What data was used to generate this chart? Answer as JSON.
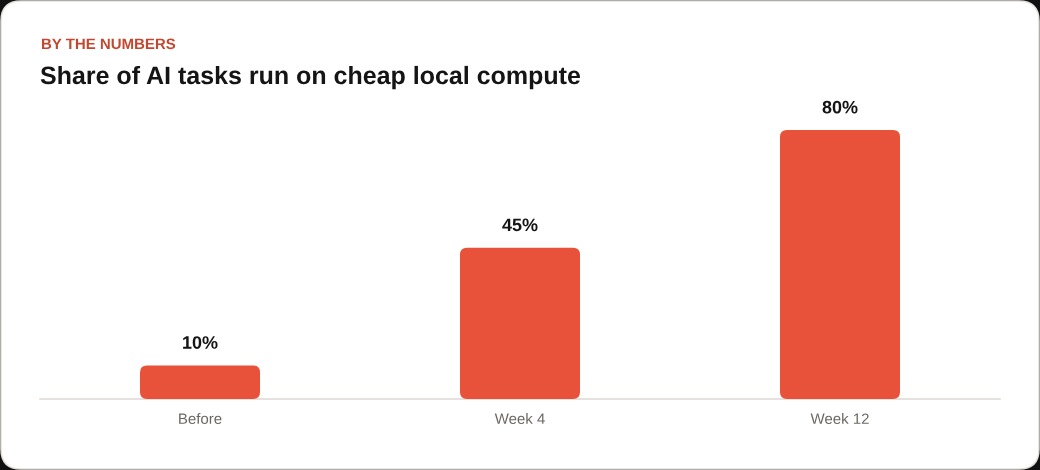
{
  "chart_data": {
    "type": "bar",
    "subtitle": "BY THE NUMBERS",
    "title": "Share of AI tasks run on cheap local compute",
    "categories": [
      "Before",
      "Week 4",
      "Week 12"
    ],
    "values": [
      10,
      45,
      80
    ],
    "value_labels": [
      "10%",
      "45%",
      "80%"
    ],
    "color": "#e8513a",
    "tick_labels": "x"
  }
}
